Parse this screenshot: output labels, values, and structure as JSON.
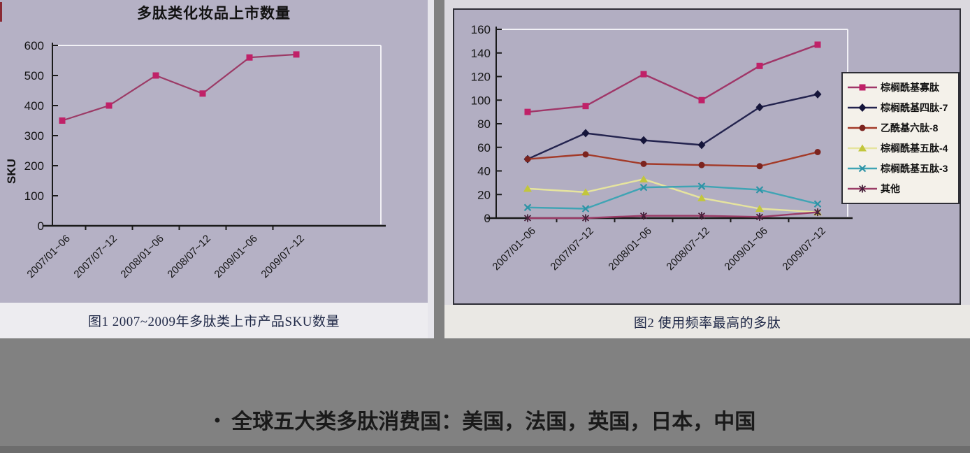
{
  "page": {
    "background_color": "#818181",
    "bullet_glyph": "•",
    "bullet_text": "全球五大类多肽消费国：美国，法国，英国，日本，中国"
  },
  "figure1": {
    "caption": "图1 2007~2009年多肽类上市产品SKU数量"
  },
  "figure2": {
    "caption": "图2 使用频率最高的多肽"
  },
  "chart_data": [
    {
      "type": "line",
      "title": "多肽类化妆品上市数量",
      "xlabel": "",
      "ylabel": "SKU",
      "categories": [
        "2007/01~06",
        "2007/07~12",
        "2008/01~06",
        "2008/07~12",
        "2009/01~06",
        "2009/07~12"
      ],
      "series": [
        {
          "name": "SKU数量",
          "values": [
            350,
            400,
            500,
            440,
            560,
            570
          ],
          "line_color": "#9c3a66",
          "marker": "square",
          "marker_color": "#c02168"
        }
      ],
      "ylim": [
        0,
        600
      ],
      "ytick_step": 100,
      "grid": false,
      "legend_position": "none",
      "plot_background": "#b5b1c5"
    },
    {
      "type": "line",
      "title": "",
      "xlabel": "",
      "ylabel": "",
      "categories": [
        "2007/01~06",
        "2007/07~12",
        "2008/01~06",
        "2008/07~12",
        "2009/01~06",
        "2009/07~12"
      ],
      "series": [
        {
          "name": "棕榈酰基寡肽",
          "values": [
            90,
            95,
            122,
            100,
            129,
            147
          ],
          "line_color": "#a03668",
          "marker": "square",
          "marker_color": "#c02168"
        },
        {
          "name": "棕榈酰基四肽-7",
          "values": [
            50,
            72,
            66,
            62,
            94,
            105
          ],
          "line_color": "#23234e",
          "marker": "diamond",
          "marker_color": "#15153a"
        },
        {
          "name": "乙酰基六肽-8",
          "values": [
            50,
            54,
            46,
            45,
            44,
            56
          ],
          "line_color": "#a33a28",
          "marker": "circle",
          "marker_color": "#7c241f"
        },
        {
          "name": "棕榈酰基五肽-4",
          "values": [
            25,
            22,
            33,
            17,
            8,
            5
          ],
          "line_color": "#e6e49e",
          "marker": "triangle",
          "marker_color": "#c2c63c"
        },
        {
          "name": "棕榈酰基五肽-3",
          "values": [
            9,
            8,
            26,
            27,
            24,
            12
          ],
          "line_color": "#3fa4b4",
          "marker": "x",
          "marker_color": "#2d93a6"
        },
        {
          "name": "其他",
          "values": [
            0,
            0,
            2,
            2,
            1,
            5
          ],
          "line_color": "#9a3c66",
          "marker": "asterisk",
          "marker_color": "#46203a"
        }
      ],
      "ylim": [
        0,
        160
      ],
      "ytick_step": 20,
      "grid": false,
      "legend_position": "right",
      "plot_background": "#b2aec2"
    }
  ]
}
